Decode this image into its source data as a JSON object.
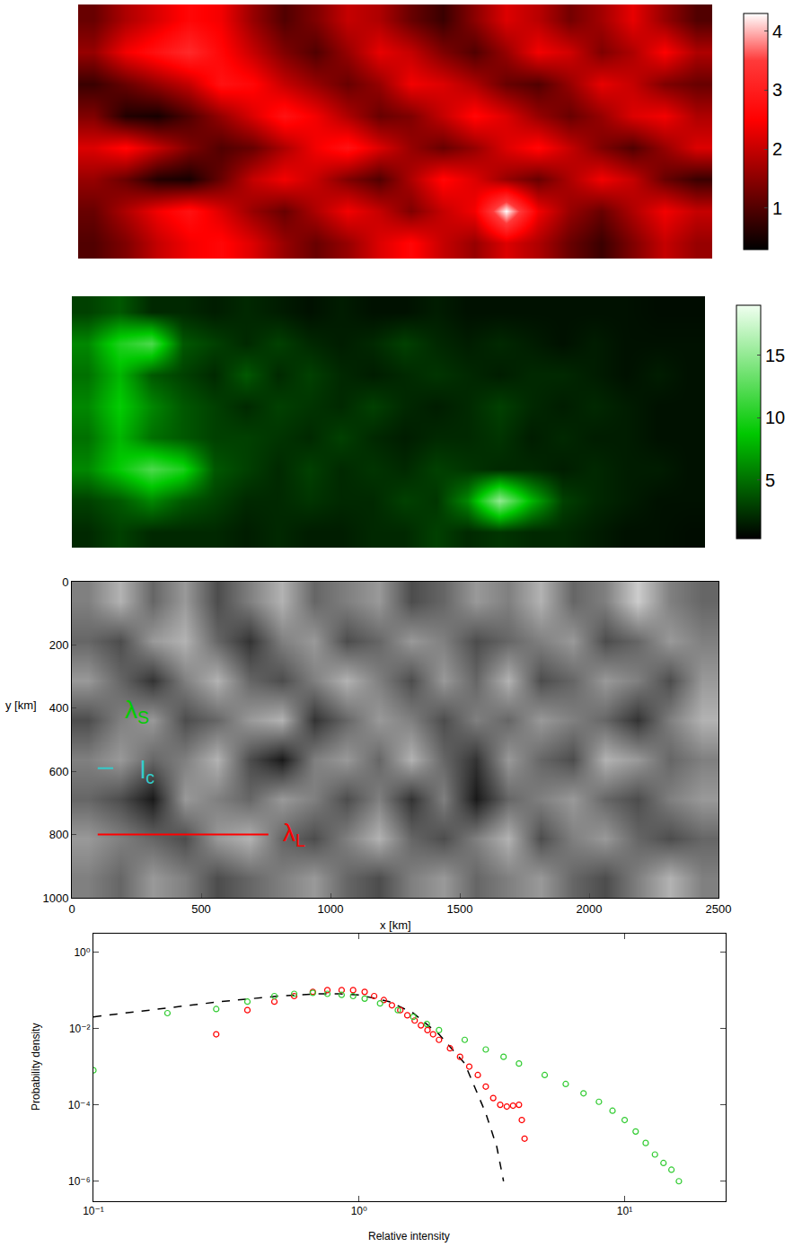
{
  "chart_data": [
    {
      "type": "heatmap",
      "tick_labels": false,
      "colorbar": {
        "range": [
          0.3,
          4.3
        ],
        "ticks": [
          1,
          2,
          3,
          4
        ]
      },
      "z": [
        [
          1.2,
          1.8,
          2.2,
          2.6,
          2.4,
          1.6,
          1.0,
          1.4,
          2.0,
          1.8,
          1.2,
          0.8,
          1.5,
          2.2,
          1.9,
          1.3,
          1.7,
          2.3,
          1.6,
          1.0
        ],
        [
          1.6,
          2.4,
          2.8,
          3.2,
          2.6,
          2.0,
          1.4,
          1.0,
          1.6,
          2.3,
          2.0,
          1.4,
          1.0,
          1.6,
          2.4,
          2.1,
          1.4,
          1.8,
          2.5,
          1.8
        ],
        [
          0.8,
          1.2,
          1.6,
          2.0,
          2.8,
          2.6,
          2.0,
          1.6,
          1.2,
          1.6,
          2.4,
          2.2,
          1.8,
          1.2,
          1.0,
          1.6,
          2.3,
          2.0,
          1.4,
          1.2
        ],
        [
          1.4,
          0.6,
          0.5,
          1.0,
          1.6,
          2.2,
          2.8,
          2.4,
          1.8,
          1.2,
          1.4,
          2.0,
          2.6,
          2.2,
          1.6,
          1.2,
          1.6,
          2.2,
          2.4,
          1.8
        ],
        [
          2.2,
          2.6,
          2.0,
          1.4,
          1.0,
          1.2,
          1.8,
          2.4,
          2.8,
          2.2,
          1.6,
          1.2,
          1.6,
          2.2,
          2.6,
          2.0,
          1.4,
          1.0,
          1.6,
          2.2
        ],
        [
          1.6,
          1.2,
          0.6,
          0.5,
          1.2,
          2.0,
          2.4,
          2.0,
          1.4,
          1.0,
          1.8,
          2.6,
          2.2,
          1.6,
          1.2,
          1.8,
          2.4,
          2.0,
          1.2,
          0.8
        ],
        [
          1.2,
          1.8,
          2.4,
          2.8,
          2.2,
          1.6,
          1.2,
          1.8,
          2.4,
          2.0,
          1.4,
          2.0,
          2.4,
          4.3,
          2.4,
          1.6,
          1.2,
          1.8,
          2.4,
          2.0
        ],
        [
          1.0,
          1.4,
          2.0,
          2.4,
          2.6,
          2.2,
          1.6,
          1.2,
          1.6,
          2.2,
          2.6,
          2.0,
          1.6,
          2.2,
          1.8,
          1.2,
          0.8,
          1.4,
          2.0,
          1.6
        ]
      ]
    },
    {
      "type": "heatmap",
      "tick_labels": false,
      "colorbar": {
        "range": [
          0.3,
          19
        ],
        "ticks": [
          5,
          10,
          15
        ]
      },
      "z": [
        [
          3,
          4,
          2,
          2,
          1.5,
          2,
          1.5,
          1,
          1.5,
          1,
          1,
          1.5,
          1,
          1,
          1,
          1,
          1,
          1,
          0.8,
          0.8
        ],
        [
          6,
          10,
          12,
          4,
          3,
          2,
          3,
          2,
          1.5,
          2,
          3,
          2,
          1.5,
          2,
          1.5,
          1,
          1.5,
          1,
          1,
          1
        ],
        [
          5,
          8,
          4,
          3,
          2,
          4,
          2,
          3,
          2,
          1.5,
          2,
          2.5,
          2,
          1.5,
          2,
          2,
          1.5,
          1,
          1.5,
          1
        ],
        [
          6,
          9,
          6,
          4,
          3,
          2,
          3,
          2.5,
          2,
          3,
          2,
          1.5,
          2,
          3,
          2,
          1.5,
          2,
          1.5,
          1,
          1
        ],
        [
          5,
          8,
          5,
          4,
          3,
          3,
          2.5,
          2,
          3,
          2,
          1.5,
          2,
          2,
          2.5,
          1.5,
          2,
          1.5,
          1.5,
          1,
          1
        ],
        [
          6,
          9,
          12,
          10,
          4,
          3,
          2,
          3,
          2,
          2.5,
          2,
          3,
          2.5,
          2,
          2,
          1.5,
          2,
          1.5,
          1.5,
          1
        ],
        [
          3,
          4,
          6,
          4,
          3,
          2,
          2,
          2.5,
          2,
          2,
          3,
          2.5,
          6,
          15,
          8,
          3,
          2,
          1.5,
          1,
          1
        ],
        [
          2,
          3,
          2,
          2,
          2,
          1.5,
          2,
          1.5,
          1.5,
          2,
          2,
          3,
          2,
          2.5,
          2,
          2,
          1.5,
          1,
          1,
          0.8
        ]
      ]
    },
    {
      "type": "heatmap",
      "xlabel": "x [km]",
      "ylabel": "y [km]",
      "xlim": [
        0,
        2500
      ],
      "ylim": [
        1000,
        0
      ],
      "xticks": [
        0,
        500,
        1000,
        1500,
        2000,
        2500
      ],
      "yticks": [
        0,
        200,
        400,
        600,
        800,
        1000
      ],
      "zlim": [
        0,
        1
      ],
      "z": [
        [
          0.5,
          0.3,
          0.6,
          0.4,
          0.7,
          0.5,
          0.3,
          0.6,
          0.5,
          0.4,
          0.7,
          0.6,
          0.4,
          0.5,
          0.3,
          0.6,
          0.5,
          0.2,
          0.5,
          0.6
        ],
        [
          0.6,
          0.7,
          0.4,
          0.3,
          0.6,
          0.8,
          0.5,
          0.4,
          0.7,
          0.6,
          0.4,
          0.5,
          0.7,
          0.6,
          0.5,
          0.4,
          0.7,
          0.6,
          0.4,
          0.5
        ],
        [
          0.4,
          0.6,
          0.8,
          0.5,
          0.3,
          0.6,
          0.7,
          0.5,
          0.3,
          0.5,
          0.7,
          0.4,
          0.6,
          0.3,
          0.7,
          0.6,
          0.4,
          0.5,
          0.7,
          0.4
        ],
        [
          0.7,
          0.5,
          0.4,
          0.7,
          0.6,
          0.4,
          0.3,
          0.8,
          0.6,
          0.4,
          0.5,
          0.7,
          0.5,
          0.6,
          0.4,
          0.5,
          0.6,
          0.8,
          0.5,
          0.3
        ],
        [
          0.5,
          0.4,
          0.6,
          0.5,
          0.3,
          0.7,
          0.9,
          0.5,
          0.4,
          0.6,
          0.3,
          0.6,
          0.8,
          0.4,
          0.6,
          0.7,
          0.3,
          0.4,
          0.6,
          0.5
        ],
        [
          0.6,
          0.7,
          0.9,
          0.4,
          0.5,
          0.6,
          0.4,
          0.5,
          0.7,
          0.5,
          0.8,
          0.5,
          0.9,
          0.6,
          0.5,
          0.4,
          0.6,
          0.7,
          0.5,
          0.4
        ],
        [
          0.4,
          0.5,
          0.6,
          0.7,
          0.4,
          0.3,
          0.6,
          0.7,
          0.5,
          0.3,
          0.6,
          0.7,
          0.5,
          0.3,
          0.7,
          0.5,
          0.4,
          0.6,
          0.7,
          0.6
        ],
        [
          0.5,
          0.6,
          0.4,
          0.5,
          0.7,
          0.6,
          0.5,
          0.4,
          0.6,
          0.7,
          0.5,
          0.4,
          0.6,
          0.5,
          0.4,
          0.6,
          0.7,
          0.5,
          0.3,
          0.5
        ]
      ],
      "annotations": [
        {
          "text": "λ",
          "sub": "S",
          "color": "#00cc00",
          "x": 250,
          "y": 410
        },
        {
          "text": "l",
          "sub": "c",
          "color": "#33cccc",
          "x": 290,
          "y": 600,
          "line": {
            "x": [
              100,
              160
            ],
            "y": 590
          }
        },
        {
          "text": "λ",
          "sub": "L",
          "color": "#ff0000",
          "x": 860,
          "y": 800,
          "line": {
            "x": [
              100,
              760
            ],
            "y": 800
          }
        }
      ]
    },
    {
      "type": "scatter",
      "log": true,
      "xlabel": "Relative intensity",
      "ylabel": "Probability density",
      "xlim": [
        0.1,
        24
      ],
      "ylim": [
        3e-07,
        3
      ],
      "xticks": [
        {
          "value": 0.1,
          "label": "10⁻¹"
        },
        {
          "value": 1,
          "label": "10⁰"
        },
        {
          "value": 10,
          "label": "10¹"
        }
      ],
      "yticks": [
        {
          "value": 1e-06,
          "label": "10⁻⁶"
        },
        {
          "value": 0.0001,
          "label": "10⁻⁴"
        },
        {
          "value": 0.01,
          "label": "10⁻²"
        },
        {
          "value": 1,
          "label": "10⁰"
        }
      ],
      "series": [
        {
          "type": "line",
          "line_style": "dash",
          "color": "#000000",
          "x": [
            0.1,
            0.2,
            0.3,
            0.5,
            0.7,
            0.85,
            1.0,
            1.3,
            1.6,
            2.0,
            2.5,
            3.0,
            3.3,
            3.5
          ],
          "values": [
            0.02,
            0.035,
            0.05,
            0.07,
            0.08,
            0.08,
            0.075,
            0.05,
            0.025,
            0.007,
            0.0012,
            6e-05,
            8e-06,
            1e-06
          ]
        },
        {
          "type": "scatter",
          "marker": "circle-open",
          "color": "#ff0000",
          "x": [
            0.29,
            0.38,
            0.48,
            0.57,
            0.67,
            0.76,
            0.86,
            0.95,
            1.05,
            1.14,
            1.24,
            1.33,
            1.43,
            1.52,
            1.62,
            1.71,
            1.81,
            1.9,
            2.0,
            2.2,
            2.4,
            2.6,
            2.8,
            3.0,
            3.2,
            3.4,
            3.6,
            3.8,
            4.0,
            4.1,
            4.2
          ],
          "values": [
            0.007,
            0.03,
            0.05,
            0.07,
            0.09,
            0.1,
            0.1,
            0.1,
            0.09,
            0.07,
            0.055,
            0.04,
            0.03,
            0.022,
            0.016,
            0.012,
            0.009,
            0.007,
            0.005,
            0.003,
            0.0018,
            0.001,
            0.0006,
            0.0003,
            0.00015,
            0.0001,
            9e-05,
            9.5e-05,
            0.0001,
            4e-05,
            1.3e-05
          ]
        },
        {
          "type": "scatter",
          "marker": "circle-open",
          "color": "#33cc33",
          "x": [
            0.1,
            0.19,
            0.29,
            0.38,
            0.48,
            0.57,
            0.67,
            0.76,
            0.86,
            0.95,
            1.05,
            1.2,
            1.4,
            1.6,
            1.8,
            2.0,
            2.5,
            3.0,
            3.5,
            4.0,
            5.0,
            6.0,
            7.0,
            8.0,
            9.0,
            10.0,
            11.0,
            12.0,
            13.0,
            14.0,
            15.0,
            16.0
          ],
          "values": [
            0.0008,
            0.025,
            0.032,
            0.05,
            0.07,
            0.08,
            0.085,
            0.08,
            0.075,
            0.07,
            0.06,
            0.045,
            0.03,
            0.02,
            0.013,
            0.009,
            0.005,
            0.0028,
            0.0018,
            0.0012,
            0.0006,
            0.00035,
            0.0002,
            0.00012,
            7e-05,
            4e-05,
            2e-05,
            1e-05,
            5e-06,
            3e-06,
            2e-06,
            1e-06
          ]
        }
      ]
    }
  ]
}
